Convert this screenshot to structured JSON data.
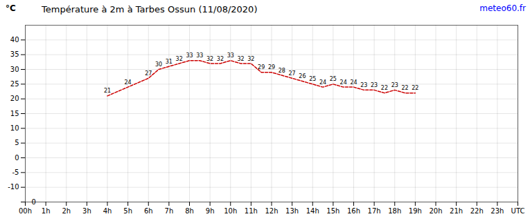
{
  "chart_data": {
    "type": "line",
    "title": "Température à 2m à Tarbes Ossun (11/08/2020)",
    "ylabel": "°C",
    "x": [
      4,
      5,
      6,
      6.5,
      7,
      7.5,
      8,
      8.5,
      9,
      9.5,
      10,
      10.5,
      11,
      11.5,
      12,
      12.5,
      13,
      13.5,
      14,
      14.5,
      15,
      15.5,
      16,
      16.5,
      17,
      17.5,
      18,
      18.5,
      19
    ],
    "values": [
      21,
      24,
      27,
      30,
      31,
      32,
      33,
      33,
      32,
      32,
      33,
      32,
      32,
      29,
      29,
      28,
      27,
      26,
      25,
      24,
      25,
      24,
      24,
      23,
      23,
      22,
      23,
      22,
      22
    ],
    "color": "#cc0000",
    "line_style": "dashed",
    "data_labels": true,
    "xlim": [
      0,
      24
    ],
    "xticks": [
      {
        "value": 0,
        "label": "00h"
      },
      {
        "value": 1,
        "label": "1h"
      },
      {
        "value": 2,
        "label": "2h"
      },
      {
        "value": 3,
        "label": "3h"
      },
      {
        "value": 4,
        "label": "4h"
      },
      {
        "value": 5,
        "label": "5h"
      },
      {
        "value": 6,
        "label": "6h"
      },
      {
        "value": 7,
        "label": "7h"
      },
      {
        "value": 8,
        "label": "8h"
      },
      {
        "value": 9,
        "label": "9h"
      },
      {
        "value": 10,
        "label": "10h"
      },
      {
        "value": 11,
        "label": "11h"
      },
      {
        "value": 12,
        "label": "12h"
      },
      {
        "value": 13,
        "label": "13h"
      },
      {
        "value": 14,
        "label": "14h"
      },
      {
        "value": 15,
        "label": "15h"
      },
      {
        "value": 16,
        "label": "16h"
      },
      {
        "value": 17,
        "label": "17h"
      },
      {
        "value": 18,
        "label": "18h"
      },
      {
        "value": 19,
        "label": "19h"
      },
      {
        "value": 20,
        "label": "20h"
      },
      {
        "value": 21,
        "label": "21h"
      },
      {
        "value": 22,
        "label": "22h"
      },
      {
        "value": 23,
        "label": "23h"
      },
      {
        "value": 24,
        "label": "UTC"
      }
    ],
    "ylim": [
      -15,
      45
    ],
    "yticks": [
      {
        "value": -15,
        "label": null
      },
      -10,
      -5,
      0,
      5,
      10,
      15,
      20,
      25,
      30,
      35,
      40
    ],
    "grid": true,
    "annotations": [
      {
        "text": "0",
        "x": 0.3,
        "y": -15
      },
      {
        "text": "meteo60.fr",
        "color": "blue"
      }
    ]
  }
}
